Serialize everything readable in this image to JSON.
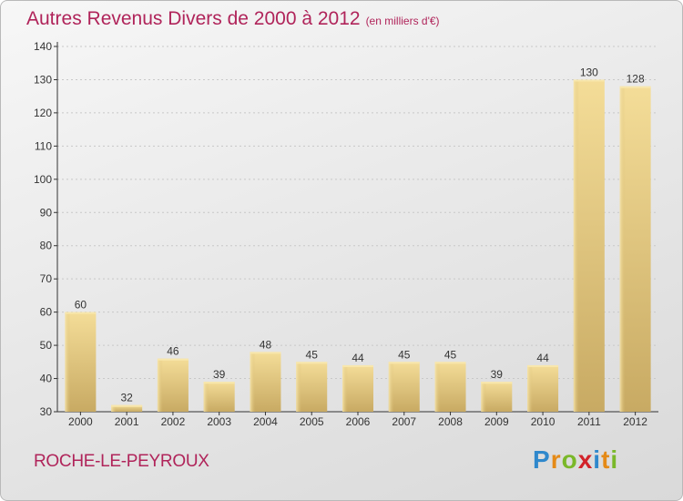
{
  "chart_data": {
    "type": "bar",
    "title": "Autres Revenus Divers de 2000 à 2012",
    "unit_note": "(en milliers d'€)",
    "categories": [
      "2000",
      "2001",
      "2002",
      "2003",
      "2004",
      "2005",
      "2006",
      "2007",
      "2008",
      "2009",
      "2010",
      "2011",
      "2012"
    ],
    "values": [
      60,
      32,
      46,
      39,
      48,
      45,
      44,
      45,
      45,
      39,
      44,
      130,
      128
    ],
    "ylim": [
      30,
      140
    ],
    "yticks": [
      30,
      40,
      50,
      60,
      70,
      80,
      90,
      100,
      110,
      120,
      130,
      140
    ],
    "grid": true,
    "bar_color": "#e8cf86",
    "grid_color": "#c8c8c8"
  },
  "footer": {
    "town": "ROCHE-LE-PEYROUX",
    "logo_letters": [
      "P",
      "r",
      "o",
      "x",
      "i",
      "t",
      "i"
    ]
  },
  "colors": {
    "title": "#b0245a",
    "axis": "#333333"
  }
}
